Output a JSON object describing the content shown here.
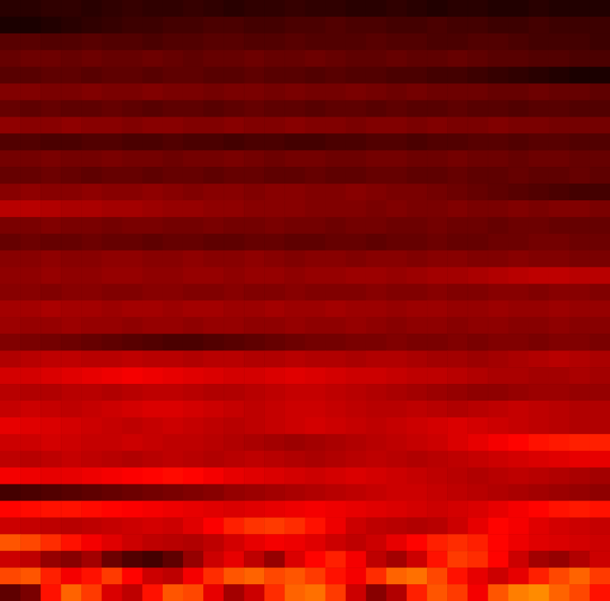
{
  "chart_data": {
    "type": "heatmap",
    "tick_labels": false,
    "zlim": [
      0,
      1
    ],
    "cells": [
      [
        0.06,
        0.06,
        0.07,
        0.07,
        0.06,
        0.07,
        0.08,
        0.07,
        0.07,
        0.08,
        0.07,
        0.06,
        0.07,
        0.07,
        0.08,
        0.07,
        0.07,
        0.06,
        0.06,
        0.07,
        0.06,
        0.05,
        0.06,
        0.06,
        0.05,
        0.05,
        0.06,
        0.05,
        0.05,
        0.05
      ],
      [
        0.04,
        0.04,
        0.05,
        0.06,
        0.07,
        0.08,
        0.09,
        0.09,
        0.1,
        0.1,
        0.11,
        0.11,
        0.1,
        0.1,
        0.11,
        0.11,
        0.12,
        0.11,
        0.11,
        0.1,
        0.1,
        0.11,
        0.1,
        0.1,
        0.09,
        0.09,
        0.1,
        0.09,
        0.09,
        0.09
      ],
      [
        0.13,
        0.13,
        0.12,
        0.12,
        0.13,
        0.12,
        0.12,
        0.11,
        0.12,
        0.12,
        0.13,
        0.13,
        0.12,
        0.12,
        0.13,
        0.12,
        0.12,
        0.12,
        0.13,
        0.12,
        0.12,
        0.11,
        0.11,
        0.12,
        0.12,
        0.11,
        0.1,
        0.1,
        0.1,
        0.09
      ],
      [
        0.15,
        0.16,
        0.16,
        0.15,
        0.16,
        0.15,
        0.15,
        0.16,
        0.15,
        0.14,
        0.15,
        0.15,
        0.16,
        0.15,
        0.15,
        0.16,
        0.15,
        0.14,
        0.14,
        0.15,
        0.14,
        0.14,
        0.15,
        0.14,
        0.13,
        0.13,
        0.12,
        0.12,
        0.11,
        0.11
      ],
      [
        0.13,
        0.13,
        0.14,
        0.14,
        0.13,
        0.14,
        0.14,
        0.13,
        0.14,
        0.14,
        0.13,
        0.13,
        0.14,
        0.13,
        0.13,
        0.12,
        0.13,
        0.12,
        0.12,
        0.11,
        0.11,
        0.1,
        0.1,
        0.09,
        0.08,
        0.07,
        0.06,
        0.05,
        0.04,
        0.04
      ],
      [
        0.19,
        0.19,
        0.18,
        0.18,
        0.19,
        0.18,
        0.18,
        0.19,
        0.18,
        0.18,
        0.17,
        0.18,
        0.18,
        0.17,
        0.18,
        0.17,
        0.17,
        0.18,
        0.17,
        0.16,
        0.17,
        0.16,
        0.16,
        0.16,
        0.15,
        0.15,
        0.16,
        0.15,
        0.15,
        0.14
      ],
      [
        0.15,
        0.14,
        0.15,
        0.14,
        0.14,
        0.15,
        0.14,
        0.13,
        0.14,
        0.14,
        0.13,
        0.14,
        0.15,
        0.14,
        0.14,
        0.13,
        0.14,
        0.14,
        0.13,
        0.14,
        0.13,
        0.13,
        0.14,
        0.13,
        0.13,
        0.12,
        0.13,
        0.13,
        0.12,
        0.12
      ],
      [
        0.21,
        0.2,
        0.2,
        0.21,
        0.2,
        0.2,
        0.19,
        0.2,
        0.2,
        0.19,
        0.19,
        0.2,
        0.19,
        0.19,
        0.2,
        0.19,
        0.19,
        0.18,
        0.19,
        0.19,
        0.18,
        0.19,
        0.18,
        0.18,
        0.19,
        0.18,
        0.18,
        0.17,
        0.17,
        0.17
      ],
      [
        0.12,
        0.12,
        0.11,
        0.11,
        0.12,
        0.12,
        0.11,
        0.11,
        0.12,
        0.11,
        0.11,
        0.1,
        0.11,
        0.11,
        0.1,
        0.1,
        0.11,
        0.11,
        0.12,
        0.12,
        0.11,
        0.12,
        0.12,
        0.13,
        0.13,
        0.12,
        0.13,
        0.13,
        0.12,
        0.12
      ],
      [
        0.17,
        0.17,
        0.18,
        0.17,
        0.17,
        0.18,
        0.17,
        0.17,
        0.16,
        0.17,
        0.17,
        0.18,
        0.17,
        0.16,
        0.17,
        0.17,
        0.16,
        0.16,
        0.17,
        0.17,
        0.16,
        0.16,
        0.17,
        0.16,
        0.16,
        0.15,
        0.16,
        0.16,
        0.15,
        0.15
      ],
      [
        0.15,
        0.15,
        0.16,
        0.15,
        0.14,
        0.15,
        0.15,
        0.14,
        0.15,
        0.15,
        0.14,
        0.15,
        0.15,
        0.14,
        0.14,
        0.15,
        0.14,
        0.14,
        0.15,
        0.15,
        0.14,
        0.14,
        0.15,
        0.14,
        0.14,
        0.15,
        0.14,
        0.14,
        0.15,
        0.14
      ],
      [
        0.2,
        0.21,
        0.2,
        0.2,
        0.21,
        0.2,
        0.2,
        0.21,
        0.2,
        0.19,
        0.2,
        0.2,
        0.19,
        0.2,
        0.2,
        0.19,
        0.19,
        0.2,
        0.19,
        0.18,
        0.18,
        0.17,
        0.16,
        0.15,
        0.14,
        0.13,
        0.12,
        0.11,
        0.1,
        0.1
      ],
      [
        0.27,
        0.27,
        0.26,
        0.25,
        0.25,
        0.24,
        0.24,
        0.23,
        0.22,
        0.22,
        0.21,
        0.21,
        0.2,
        0.2,
        0.2,
        0.19,
        0.19,
        0.19,
        0.18,
        0.19,
        0.18,
        0.18,
        0.19,
        0.18,
        0.18,
        0.19,
        0.18,
        0.19,
        0.19,
        0.18
      ],
      [
        0.18,
        0.18,
        0.19,
        0.18,
        0.18,
        0.17,
        0.18,
        0.18,
        0.17,
        0.17,
        0.18,
        0.17,
        0.17,
        0.18,
        0.17,
        0.17,
        0.16,
        0.17,
        0.17,
        0.16,
        0.16,
        0.17,
        0.16,
        0.16,
        0.15,
        0.16,
        0.16,
        0.15,
        0.15,
        0.15
      ],
      [
        0.15,
        0.16,
        0.15,
        0.15,
        0.16,
        0.15,
        0.15,
        0.14,
        0.15,
        0.15,
        0.14,
        0.14,
        0.15,
        0.15,
        0.14,
        0.14,
        0.15,
        0.15,
        0.14,
        0.15,
        0.15,
        0.16,
        0.15,
        0.15,
        0.16,
        0.16,
        0.17,
        0.17,
        0.16,
        0.16
      ],
      [
        0.2,
        0.2,
        0.21,
        0.2,
        0.2,
        0.21,
        0.21,
        0.2,
        0.2,
        0.21,
        0.2,
        0.2,
        0.21,
        0.2,
        0.19,
        0.2,
        0.2,
        0.19,
        0.2,
        0.2,
        0.19,
        0.2,
        0.2,
        0.19,
        0.19,
        0.2,
        0.19,
        0.19,
        0.18,
        0.18
      ],
      [
        0.21,
        0.21,
        0.22,
        0.21,
        0.21,
        0.22,
        0.22,
        0.21,
        0.21,
        0.22,
        0.22,
        0.21,
        0.22,
        0.22,
        0.21,
        0.22,
        0.22,
        0.23,
        0.23,
        0.22,
        0.23,
        0.24,
        0.24,
        0.25,
        0.26,
        0.27,
        0.28,
        0.28,
        0.27,
        0.27
      ],
      [
        0.2,
        0.2,
        0.19,
        0.2,
        0.2,
        0.19,
        0.19,
        0.2,
        0.2,
        0.19,
        0.19,
        0.2,
        0.19,
        0.19,
        0.2,
        0.19,
        0.19,
        0.19,
        0.2,
        0.19,
        0.19,
        0.2,
        0.19,
        0.19,
        0.2,
        0.2,
        0.19,
        0.2,
        0.2,
        0.19
      ],
      [
        0.24,
        0.24,
        0.25,
        0.24,
        0.24,
        0.23,
        0.24,
        0.24,
        0.23,
        0.24,
        0.24,
        0.23,
        0.23,
        0.24,
        0.23,
        0.23,
        0.24,
        0.23,
        0.23,
        0.22,
        0.23,
        0.23,
        0.22,
        0.22,
        0.23,
        0.22,
        0.22,
        0.23,
        0.22,
        0.22
      ],
      [
        0.23,
        0.22,
        0.22,
        0.23,
        0.22,
        0.22,
        0.21,
        0.22,
        0.22,
        0.21,
        0.22,
        0.22,
        0.21,
        0.21,
        0.22,
        0.21,
        0.21,
        0.22,
        0.21,
        0.2,
        0.21,
        0.21,
        0.2,
        0.21,
        0.21,
        0.2,
        0.2,
        0.21,
        0.2,
        0.2
      ],
      [
        0.19,
        0.18,
        0.17,
        0.16,
        0.15,
        0.14,
        0.13,
        0.12,
        0.11,
        0.11,
        0.12,
        0.13,
        0.14,
        0.15,
        0.16,
        0.17,
        0.17,
        0.18,
        0.18,
        0.19,
        0.18,
        0.18,
        0.19,
        0.18,
        0.19,
        0.19,
        0.18,
        0.19,
        0.19,
        0.18
      ],
      [
        0.26,
        0.27,
        0.28,
        0.28,
        0.27,
        0.27,
        0.28,
        0.27,
        0.27,
        0.26,
        0.27,
        0.27,
        0.26,
        0.26,
        0.27,
        0.26,
        0.26,
        0.25,
        0.26,
        0.26,
        0.25,
        0.24,
        0.24,
        0.23,
        0.24,
        0.25,
        0.26,
        0.27,
        0.26,
        0.25
      ],
      [
        0.31,
        0.31,
        0.32,
        0.33,
        0.34,
        0.35,
        0.36,
        0.35,
        0.34,
        0.33,
        0.32,
        0.31,
        0.31,
        0.32,
        0.33,
        0.32,
        0.31,
        0.3,
        0.3,
        0.29,
        0.28,
        0.28,
        0.27,
        0.26,
        0.25,
        0.25,
        0.24,
        0.24,
        0.25,
        0.24
      ],
      [
        0.27,
        0.26,
        0.26,
        0.27,
        0.27,
        0.26,
        0.27,
        0.28,
        0.28,
        0.27,
        0.26,
        0.26,
        0.27,
        0.28,
        0.29,
        0.29,
        0.28,
        0.27,
        0.26,
        0.25,
        0.24,
        0.23,
        0.22,
        0.21,
        0.21,
        0.22,
        0.23,
        0.23,
        0.22,
        0.22
      ],
      [
        0.29,
        0.3,
        0.29,
        0.28,
        0.29,
        0.3,
        0.31,
        0.32,
        0.32,
        0.31,
        0.3,
        0.29,
        0.28,
        0.29,
        0.3,
        0.3,
        0.29,
        0.28,
        0.27,
        0.27,
        0.28,
        0.27,
        0.26,
        0.27,
        0.28,
        0.29,
        0.28,
        0.27,
        0.26,
        0.26
      ],
      [
        0.34,
        0.33,
        0.32,
        0.31,
        0.3,
        0.29,
        0.28,
        0.29,
        0.3,
        0.29,
        0.28,
        0.27,
        0.28,
        0.29,
        0.3,
        0.31,
        0.3,
        0.29,
        0.28,
        0.29,
        0.3,
        0.31,
        0.32,
        0.31,
        0.3,
        0.29,
        0.28,
        0.27,
        0.26,
        0.26
      ],
      [
        0.3,
        0.3,
        0.31,
        0.3,
        0.29,
        0.29,
        0.3,
        0.29,
        0.28,
        0.28,
        0.27,
        0.26,
        0.25,
        0.24,
        0.23,
        0.24,
        0.25,
        0.26,
        0.27,
        0.28,
        0.29,
        0.3,
        0.32,
        0.34,
        0.36,
        0.38,
        0.4,
        0.41,
        0.42,
        0.42
      ],
      [
        0.28,
        0.27,
        0.28,
        0.29,
        0.28,
        0.27,
        0.26,
        0.27,
        0.28,
        0.27,
        0.26,
        0.27,
        0.28,
        0.27,
        0.26,
        0.25,
        0.26,
        0.27,
        0.28,
        0.27,
        0.26,
        0.27,
        0.28,
        0.29,
        0.3,
        0.31,
        0.32,
        0.33,
        0.34,
        0.34
      ],
      [
        0.36,
        0.35,
        0.34,
        0.34,
        0.35,
        0.36,
        0.37,
        0.38,
        0.39,
        0.38,
        0.36,
        0.34,
        0.33,
        0.32,
        0.31,
        0.3,
        0.31,
        0.32,
        0.31,
        0.3,
        0.29,
        0.28,
        0.27,
        0.26,
        0.27,
        0.28,
        0.27,
        0.26,
        0.25,
        0.24
      ],
      [
        0.1,
        0.11,
        0.12,
        0.13,
        0.14,
        0.15,
        0.16,
        0.17,
        0.18,
        0.19,
        0.2,
        0.22,
        0.23,
        0.24,
        0.25,
        0.26,
        0.27,
        0.28,
        0.29,
        0.3,
        0.3,
        0.29,
        0.28,
        0.27,
        0.26,
        0.25,
        0.24,
        0.23,
        0.22,
        0.21
      ],
      [
        0.38,
        0.39,
        0.4,
        0.4,
        0.39,
        0.38,
        0.37,
        0.36,
        0.35,
        0.34,
        0.33,
        0.32,
        0.33,
        0.34,
        0.35,
        0.36,
        0.35,
        0.34,
        0.33,
        0.32,
        0.31,
        0.3,
        0.31,
        0.32,
        0.34,
        0.36,
        0.38,
        0.4,
        0.41,
        0.4
      ],
      [
        0.3,
        0.29,
        0.28,
        0.27,
        0.28,
        0.29,
        0.3,
        0.31,
        0.3,
        0.33,
        0.37,
        0.42,
        0.45,
        0.46,
        0.44,
        0.4,
        0.35,
        0.3,
        0.28,
        0.27,
        0.26,
        0.27,
        0.3,
        0.34,
        0.38,
        0.36,
        0.33,
        0.31,
        0.3,
        0.29
      ],
      [
        0.5,
        0.48,
        0.44,
        0.4,
        0.36,
        0.33,
        0.3,
        0.28,
        0.27,
        0.26,
        0.28,
        0.31,
        0.34,
        0.36,
        0.35,
        0.33,
        0.3,
        0.28,
        0.3,
        0.34,
        0.38,
        0.42,
        0.44,
        0.42,
        0.38,
        0.35,
        0.33,
        0.32,
        0.31,
        0.3
      ],
      [
        0.3,
        0.28,
        0.22,
        0.2,
        0.24,
        0.16,
        0.12,
        0.1,
        0.14,
        0.22,
        0.3,
        0.34,
        0.28,
        0.22,
        0.32,
        0.38,
        0.42,
        0.36,
        0.28,
        0.24,
        0.3,
        0.4,
        0.46,
        0.44,
        0.38,
        0.3,
        0.24,
        0.22,
        0.26,
        0.3
      ],
      [
        0.48,
        0.5,
        0.42,
        0.36,
        0.4,
        0.46,
        0.38,
        0.3,
        0.28,
        0.36,
        0.44,
        0.5,
        0.52,
        0.48,
        0.5,
        0.46,
        0.4,
        0.36,
        0.44,
        0.52,
        0.54,
        0.48,
        0.4,
        0.34,
        0.3,
        0.34,
        0.42,
        0.48,
        0.52,
        0.46
      ],
      [
        0.14,
        0.18,
        0.4,
        0.52,
        0.46,
        0.32,
        0.28,
        0.4,
        0.5,
        0.48,
        0.34,
        0.24,
        0.3,
        0.44,
        0.52,
        0.54,
        0.46,
        0.3,
        0.2,
        0.26,
        0.42,
        0.5,
        0.46,
        0.36,
        0.5,
        0.56,
        0.58,
        0.52,
        0.48,
        0.4
      ]
    ]
  }
}
